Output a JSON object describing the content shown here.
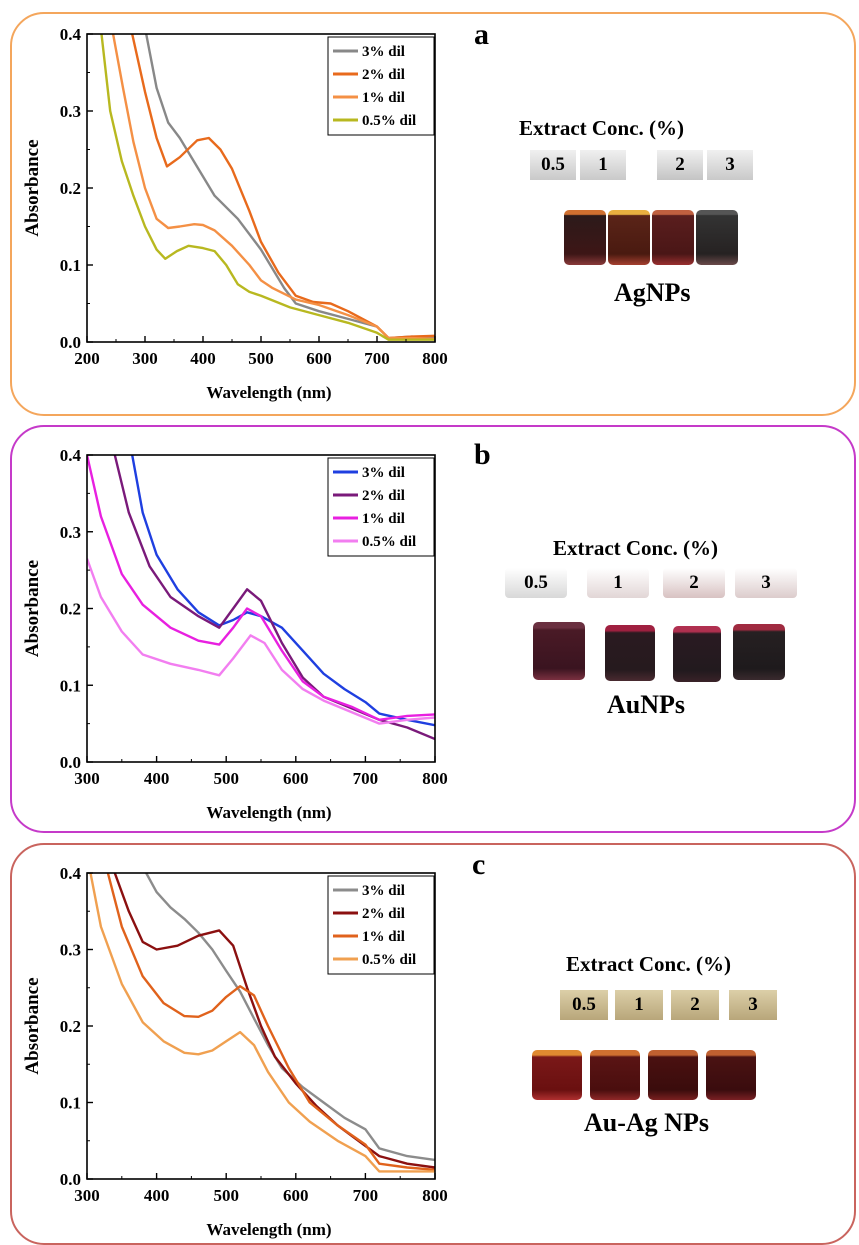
{
  "colors": {
    "panel_a_border": "#f4a65c",
    "panel_b_border": "#c53ac9",
    "panel_c_border": "#c9645e"
  },
  "chart_data": [
    {
      "panel": "a",
      "type": "line",
      "xlabel": "Wavelength (nm)",
      "ylabel": "Absorbance",
      "xlim": [
        200,
        800
      ],
      "ylim": [
        0,
        0.4
      ],
      "xticks": [
        200,
        300,
        400,
        500,
        600,
        700,
        800
      ],
      "yticks": [
        "0.0",
        "0.1",
        "0.2",
        "0.3",
        "0.4"
      ],
      "legend_position": "top-right",
      "series": [
        {
          "name": "3% dil",
          "color": "#888888",
          "points": [
            [
              302,
              0.4
            ],
            [
              320,
              0.33
            ],
            [
              340,
              0.285
            ],
            [
              360,
              0.265
            ],
            [
              380,
              0.24
            ],
            [
              400,
              0.215
            ],
            [
              420,
              0.19
            ],
            [
              460,
              0.16
            ],
            [
              500,
              0.12
            ],
            [
              540,
              0.07
            ],
            [
              560,
              0.05
            ],
            [
              600,
              0.04
            ],
            [
              650,
              0.03
            ],
            [
              700,
              0.02
            ],
            [
              720,
              0.005
            ],
            [
              760,
              0.007
            ],
            [
              800,
              0.005
            ]
          ]
        },
        {
          "name": "2% dil",
          "color": "#e86a1c",
          "points": [
            [
              278,
              0.4
            ],
            [
              300,
              0.325
            ],
            [
              320,
              0.265
            ],
            [
              338,
              0.228
            ],
            [
              360,
              0.24
            ],
            [
              390,
              0.262
            ],
            [
              410,
              0.265
            ],
            [
              430,
              0.25
            ],
            [
              450,
              0.225
            ],
            [
              480,
              0.17
            ],
            [
              500,
              0.13
            ],
            [
              530,
              0.09
            ],
            [
              560,
              0.06
            ],
            [
              590,
              0.052
            ],
            [
              620,
              0.05
            ],
            [
              650,
              0.04
            ],
            [
              700,
              0.02
            ],
            [
              720,
              0.005
            ],
            [
              760,
              0.007
            ],
            [
              800,
              0.008
            ]
          ]
        },
        {
          "name": "1% dil",
          "color": "#f49045",
          "points": [
            [
              245,
              0.4
            ],
            [
              262,
              0.33
            ],
            [
              280,
              0.26
            ],
            [
              300,
              0.2
            ],
            [
              320,
              0.16
            ],
            [
              340,
              0.148
            ],
            [
              360,
              0.15
            ],
            [
              385,
              0.153
            ],
            [
              400,
              0.152
            ],
            [
              420,
              0.145
            ],
            [
              450,
              0.125
            ],
            [
              480,
              0.1
            ],
            [
              500,
              0.08
            ],
            [
              520,
              0.07
            ],
            [
              560,
              0.055
            ],
            [
              600,
              0.048
            ],
            [
              650,
              0.035
            ],
            [
              700,
              0.02
            ],
            [
              720,
              0.005
            ],
            [
              760,
              0.005
            ],
            [
              800,
              0.004
            ]
          ]
        },
        {
          "name": "0.5% dil",
          "color": "#b8b820",
          "points": [
            [
              225,
              0.4
            ],
            [
              240,
              0.3
            ],
            [
              260,
              0.235
            ],
            [
              280,
              0.19
            ],
            [
              300,
              0.15
            ],
            [
              320,
              0.12
            ],
            [
              335,
              0.108
            ],
            [
              355,
              0.118
            ],
            [
              375,
              0.125
            ],
            [
              400,
              0.122
            ],
            [
              420,
              0.118
            ],
            [
              440,
              0.1
            ],
            [
              460,
              0.075
            ],
            [
              480,
              0.065
            ],
            [
              500,
              0.06
            ],
            [
              550,
              0.045
            ],
            [
              600,
              0.035
            ],
            [
              650,
              0.025
            ],
            [
              700,
              0.012
            ],
            [
              720,
              0.003
            ],
            [
              760,
              0.003
            ],
            [
              800,
              0.003
            ]
          ]
        }
      ]
    },
    {
      "panel": "b",
      "type": "line",
      "xlabel": "Wavelength (nm)",
      "ylabel": "Absorbance",
      "xlim": [
        300,
        800
      ],
      "ylim": [
        0,
        0.4
      ],
      "xticks": [
        300,
        400,
        500,
        600,
        700,
        800
      ],
      "yticks": [
        "0.0",
        "0.1",
        "0.2",
        "0.3",
        "0.4"
      ],
      "legend_position": "top-right",
      "series": [
        {
          "name": "3% dil",
          "color": "#1f3fe0",
          "points": [
            [
              365,
              0.4
            ],
            [
              380,
              0.325
            ],
            [
              400,
              0.27
            ],
            [
              430,
              0.225
            ],
            [
              460,
              0.195
            ],
            [
              490,
              0.178
            ],
            [
              510,
              0.185
            ],
            [
              530,
              0.195
            ],
            [
              550,
              0.19
            ],
            [
              580,
              0.175
            ],
            [
              610,
              0.145
            ],
            [
              640,
              0.115
            ],
            [
              670,
              0.095
            ],
            [
              700,
              0.078
            ],
            [
              720,
              0.063
            ],
            [
              760,
              0.055
            ],
            [
              800,
              0.048
            ]
          ]
        },
        {
          "name": "2% dil",
          "color": "#7a1a7a",
          "points": [
            [
              340,
              0.4
            ],
            [
              360,
              0.325
            ],
            [
              390,
              0.255
            ],
            [
              420,
              0.215
            ],
            [
              460,
              0.19
            ],
            [
              490,
              0.175
            ],
            [
              510,
              0.2
            ],
            [
              530,
              0.225
            ],
            [
              550,
              0.21
            ],
            [
              580,
              0.155
            ],
            [
              610,
              0.11
            ],
            [
              640,
              0.085
            ],
            [
              680,
              0.07
            ],
            [
              720,
              0.055
            ],
            [
              760,
              0.045
            ],
            [
              800,
              0.03
            ]
          ]
        },
        {
          "name": "1% dil",
          "color": "#e820e0",
          "points": [
            [
              300,
              0.4
            ],
            [
              320,
              0.32
            ],
            [
              350,
              0.245
            ],
            [
              380,
              0.205
            ],
            [
              420,
              0.175
            ],
            [
              460,
              0.158
            ],
            [
              490,
              0.153
            ],
            [
              510,
              0.175
            ],
            [
              530,
              0.2
            ],
            [
              550,
              0.19
            ],
            [
              580,
              0.145
            ],
            [
              610,
              0.105
            ],
            [
              640,
              0.085
            ],
            [
              680,
              0.072
            ],
            [
              720,
              0.055
            ],
            [
              760,
              0.06
            ],
            [
              800,
              0.062
            ]
          ]
        },
        {
          "name": "0.5% dil",
          "color": "#f27ef0",
          "points": [
            [
              300,
              0.265
            ],
            [
              320,
              0.215
            ],
            [
              350,
              0.17
            ],
            [
              380,
              0.14
            ],
            [
              420,
              0.128
            ],
            [
              460,
              0.12
            ],
            [
              490,
              0.113
            ],
            [
              510,
              0.135
            ],
            [
              535,
              0.165
            ],
            [
              555,
              0.155
            ],
            [
              580,
              0.12
            ],
            [
              610,
              0.095
            ],
            [
              640,
              0.08
            ],
            [
              680,
              0.065
            ],
            [
              720,
              0.05
            ],
            [
              760,
              0.055
            ],
            [
              800,
              0.058
            ]
          ]
        }
      ]
    },
    {
      "panel": "c",
      "type": "line",
      "xlabel": "Wavelength (nm)",
      "ylabel": "Absorbance",
      "xlim": [
        300,
        800
      ],
      "ylim": [
        0,
        0.4
      ],
      "xticks": [
        300,
        400,
        500,
        600,
        700,
        800
      ],
      "yticks": [
        "0.0",
        "0.1",
        "0.2",
        "0.3",
        "0.4"
      ],
      "legend_position": "top-right",
      "series": [
        {
          "name": "3% dil",
          "color": "#8c8c8c",
          "points": [
            [
              385,
              0.4
            ],
            [
              400,
              0.375
            ],
            [
              420,
              0.355
            ],
            [
              440,
              0.34
            ],
            [
              460,
              0.322
            ],
            [
              480,
              0.3
            ],
            [
              500,
              0.272
            ],
            [
              520,
              0.245
            ],
            [
              540,
              0.21
            ],
            [
              560,
              0.175
            ],
            [
              580,
              0.145
            ],
            [
              610,
              0.12
            ],
            [
              640,
              0.1
            ],
            [
              670,
              0.08
            ],
            [
              700,
              0.065
            ],
            [
              720,
              0.04
            ],
            [
              760,
              0.03
            ],
            [
              800,
              0.025
            ]
          ]
        },
        {
          "name": "2% dil",
          "color": "#8b1010",
          "points": [
            [
              340,
              0.4
            ],
            [
              360,
              0.35
            ],
            [
              380,
              0.31
            ],
            [
              400,
              0.3
            ],
            [
              430,
              0.305
            ],
            [
              460,
              0.318
            ],
            [
              490,
              0.325
            ],
            [
              510,
              0.305
            ],
            [
              530,
              0.25
            ],
            [
              550,
              0.2
            ],
            [
              570,
              0.16
            ],
            [
              600,
              0.125
            ],
            [
              630,
              0.095
            ],
            [
              660,
              0.07
            ],
            [
              690,
              0.05
            ],
            [
              720,
              0.03
            ],
            [
              760,
              0.02
            ],
            [
              800,
              0.015
            ]
          ]
        },
        {
          "name": "1% dil",
          "color": "#e0621c",
          "points": [
            [
              330,
              0.4
            ],
            [
              350,
              0.33
            ],
            [
              380,
              0.265
            ],
            [
              410,
              0.23
            ],
            [
              440,
              0.213
            ],
            [
              460,
              0.212
            ],
            [
              480,
              0.22
            ],
            [
              500,
              0.238
            ],
            [
              520,
              0.252
            ],
            [
              540,
              0.24
            ],
            [
              560,
              0.2
            ],
            [
              590,
              0.145
            ],
            [
              620,
              0.1
            ],
            [
              660,
              0.07
            ],
            [
              700,
              0.045
            ],
            [
              720,
              0.02
            ],
            [
              760,
              0.015
            ],
            [
              800,
              0.012
            ]
          ]
        },
        {
          "name": "0.5% dil",
          "color": "#f0a050",
          "points": [
            [
              305,
              0.4
            ],
            [
              320,
              0.33
            ],
            [
              350,
              0.255
            ],
            [
              380,
              0.205
            ],
            [
              410,
              0.18
            ],
            [
              440,
              0.165
            ],
            [
              460,
              0.163
            ],
            [
              480,
              0.168
            ],
            [
              500,
              0.18
            ],
            [
              520,
              0.192
            ],
            [
              540,
              0.175
            ],
            [
              560,
              0.14
            ],
            [
              590,
              0.1
            ],
            [
              620,
              0.075
            ],
            [
              660,
              0.05
            ],
            [
              700,
              0.03
            ],
            [
              720,
              0.01
            ],
            [
              760,
              0.01
            ],
            [
              800,
              0.01
            ]
          ]
        }
      ]
    }
  ],
  "panel_a": {
    "letter": "a",
    "conc_title": "Extract Conc. (%)",
    "caps": [
      "0.5",
      "1",
      "2",
      "3"
    ],
    "np_label": "AgNPs"
  },
  "panel_b": {
    "letter": "b",
    "conc_title": "Extract Conc. (%)",
    "caps": [
      "0.5",
      "1",
      "2",
      "3"
    ],
    "np_label": "AuNPs"
  },
  "panel_c": {
    "letter": "c",
    "conc_title": "Extract Conc. (%)",
    "caps": [
      "0.5",
      "1",
      "2",
      "3"
    ],
    "np_label": "Au-Ag NPs"
  }
}
